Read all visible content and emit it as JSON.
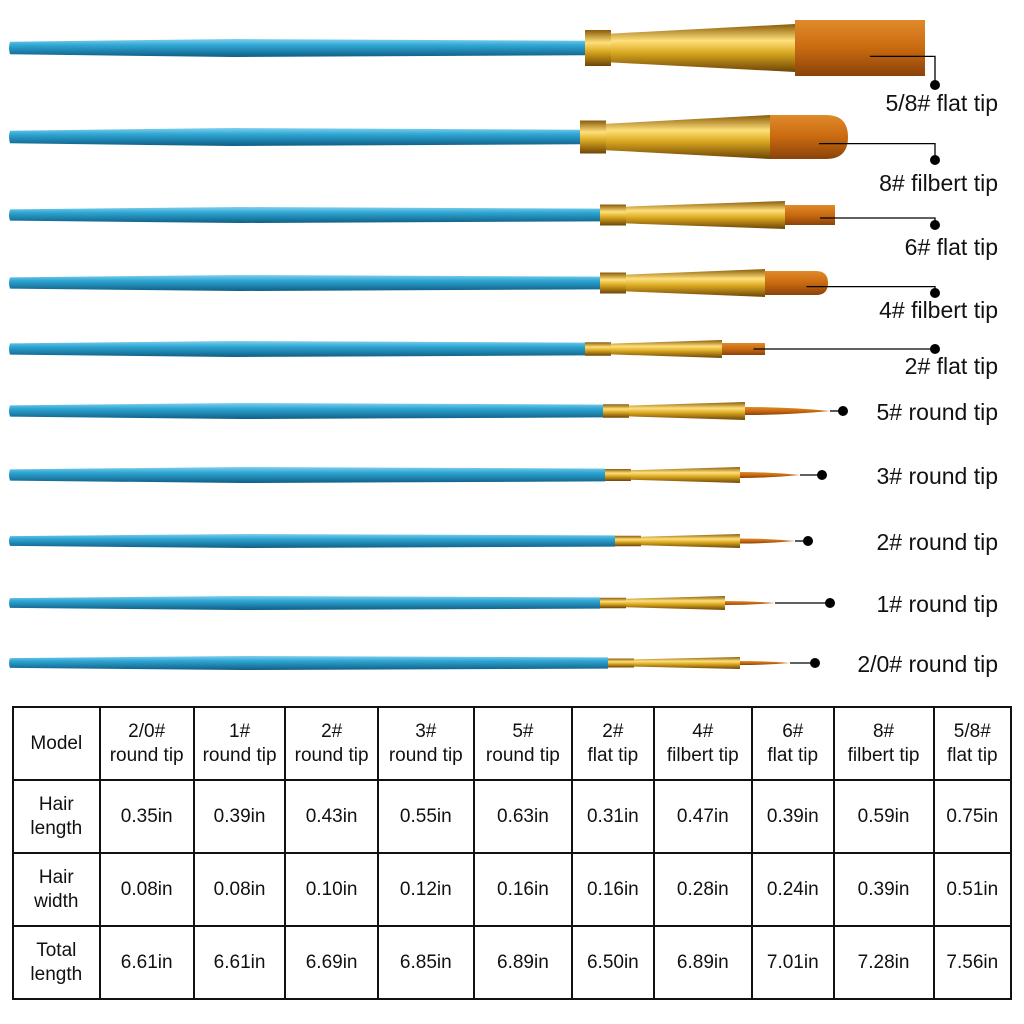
{
  "colors": {
    "handle": "#2a9cc9",
    "ferrule": "#d9a820",
    "hair": "#c96a10",
    "line": "#000000"
  },
  "brushes": [
    {
      "label": "5/8# flat tip",
      "shape": "flat"
    },
    {
      "label": "8# filbert tip",
      "shape": "filbert"
    },
    {
      "label": "6# flat tip",
      "shape": "flat"
    },
    {
      "label": "4# filbert tip",
      "shape": "filbert"
    },
    {
      "label": "2# flat tip",
      "shape": "flat"
    },
    {
      "label": "5# round tip",
      "shape": "round"
    },
    {
      "label": "3# round tip",
      "shape": "round"
    },
    {
      "label": "2# round tip",
      "shape": "round"
    },
    {
      "label": "1# round tip",
      "shape": "round"
    },
    {
      "label": "2/0# round tip",
      "shape": "round"
    }
  ],
  "table": {
    "header": {
      "label": "Model",
      "cols": [
        [
          "2/0#",
          "round tip"
        ],
        [
          "1#",
          "round tip"
        ],
        [
          "2#",
          "round tip"
        ],
        [
          "3#",
          "round tip"
        ],
        [
          "5#",
          "round tip"
        ],
        [
          "2#",
          "flat tip"
        ],
        [
          "4#",
          "filbert tip"
        ],
        [
          "6#",
          "flat tip"
        ],
        [
          "8#",
          "filbert tip"
        ],
        [
          "5/8#",
          "flat tip"
        ]
      ]
    },
    "rows": [
      {
        "label": [
          "Hair",
          "length"
        ],
        "values": [
          "0.35in",
          "0.39in",
          "0.43in",
          "0.55in",
          "0.63in",
          "0.31in",
          "0.47in",
          "0.39in",
          "0.59in",
          "0.75in"
        ]
      },
      {
        "label": [
          "Hair",
          "width"
        ],
        "values": [
          "0.08in",
          "0.08in",
          "0.10in",
          "0.12in",
          "0.16in",
          "0.16in",
          "0.28in",
          "0.24in",
          "0.39in",
          "0.51in"
        ]
      },
      {
        "label": [
          "Total",
          "length"
        ],
        "values": [
          "6.61in",
          "6.61in",
          "6.69in",
          "6.85in",
          "6.89in",
          "6.50in",
          "6.89in",
          "7.01in",
          "7.28in",
          "7.56in"
        ]
      }
    ]
  }
}
